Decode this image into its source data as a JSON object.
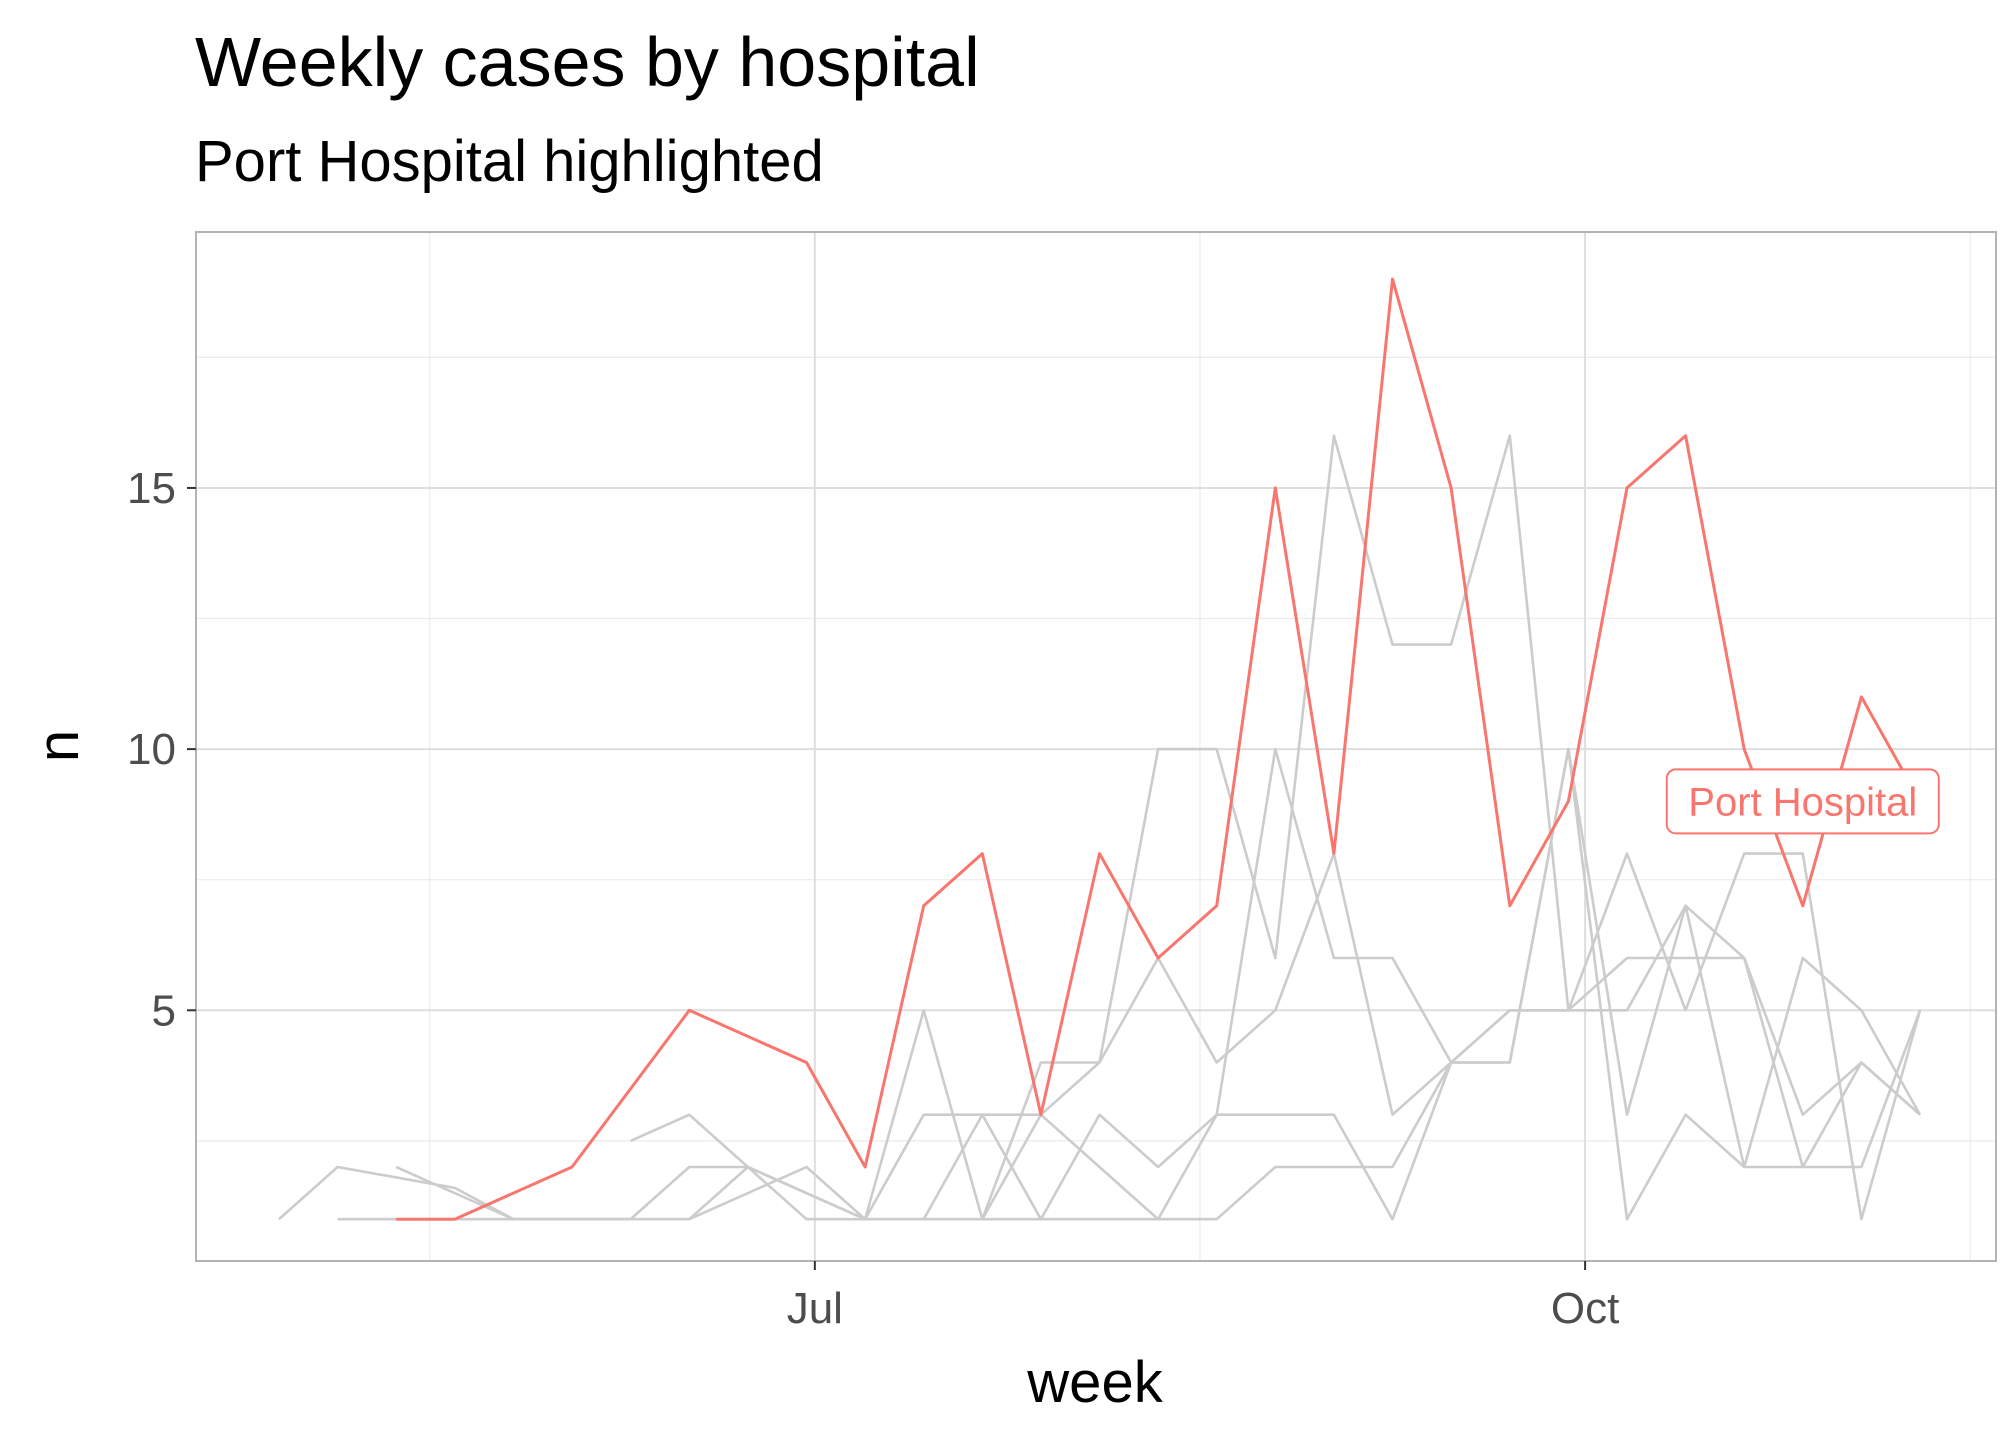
{
  "chart_data": {
    "type": "line",
    "title": "Weekly cases by hospital",
    "subtitle": "Port Hospital highlighted",
    "xlabel": "week",
    "ylabel": "n",
    "x_ticks": [
      "Jul",
      "Oct"
    ],
    "y_ticks": [
      5,
      10,
      15
    ],
    "ylim": [
      0.2,
      19.9
    ],
    "grid": true,
    "highlight_color": "#f8766d",
    "background_color": "#cccccc",
    "series": [
      {
        "name": "Port Hospital",
        "highlighted": true,
        "points": [
          [
            "2014-05-12",
            1
          ],
          [
            "2014-05-19",
            1
          ],
          [
            "2014-06-02",
            2
          ],
          [
            "2014-06-16",
            5
          ],
          [
            "2014-06-30",
            4
          ],
          [
            "2014-07-07",
            2
          ],
          [
            "2014-07-14",
            7
          ],
          [
            "2014-07-21",
            8
          ],
          [
            "2014-07-28",
            3
          ],
          [
            "2014-08-04",
            8
          ],
          [
            "2014-08-11",
            6
          ],
          [
            "2014-08-18",
            7
          ],
          [
            "2014-08-25",
            15
          ],
          [
            "2014-09-01",
            8
          ],
          [
            "2014-09-08",
            19
          ],
          [
            "2014-09-15",
            15
          ],
          [
            "2014-09-22",
            7
          ],
          [
            "2014-09-29",
            9
          ],
          [
            "2014-10-06",
            15
          ],
          [
            "2014-10-13",
            16
          ],
          [
            "2014-10-20",
            10
          ],
          [
            "2014-10-27",
            7
          ],
          [
            "2014-11-03",
            11
          ],
          [
            "2014-11-10",
            9
          ]
        ]
      },
      {
        "points": [
          [
            "2014-04-28",
            1
          ],
          [
            "2014-05-05",
            2
          ],
          [
            "2014-05-19",
            1.6
          ],
          [
            "2014-05-26",
            1
          ],
          [
            "2014-06-02",
            1
          ],
          [
            "2014-06-09",
            1
          ],
          [
            "2014-06-16",
            1
          ],
          [
            "2014-06-23",
            2
          ],
          [
            "2014-07-07",
            1
          ],
          [
            "2014-07-14",
            3
          ],
          [
            "2014-07-21",
            3
          ],
          [
            "2014-07-28",
            3
          ],
          [
            "2014-08-04",
            2
          ],
          [
            "2014-08-11",
            1
          ],
          [
            "2014-08-18",
            1
          ],
          [
            "2014-08-25",
            2
          ],
          [
            "2014-09-01",
            2
          ],
          [
            "2014-09-08",
            2
          ],
          [
            "2014-09-15",
            4
          ],
          [
            "2014-09-22",
            5
          ],
          [
            "2014-09-29",
            5
          ],
          [
            "2014-10-06",
            6
          ],
          [
            "2014-10-13",
            6
          ],
          [
            "2014-10-20",
            6
          ],
          [
            "2014-10-27",
            2
          ],
          [
            "2014-11-03",
            4
          ],
          [
            "2014-11-10",
            3
          ]
        ]
      },
      {
        "points": [
          [
            "2014-05-05",
            1
          ],
          [
            "2014-05-19",
            1
          ],
          [
            "2014-06-02",
            1
          ],
          [
            "2014-06-09",
            1
          ],
          [
            "2014-06-16",
            2
          ],
          [
            "2014-06-23",
            2
          ],
          [
            "2014-07-07",
            1
          ],
          [
            "2014-07-14",
            1
          ],
          [
            "2014-07-21",
            1
          ],
          [
            "2014-07-28",
            1
          ],
          [
            "2014-08-04",
            1
          ],
          [
            "2014-08-11",
            1
          ],
          [
            "2014-08-18",
            3
          ],
          [
            "2014-08-25",
            3
          ],
          [
            "2014-09-01",
            3
          ],
          [
            "2014-09-08",
            1
          ],
          [
            "2014-09-15",
            4
          ],
          [
            "2014-09-22",
            4
          ],
          [
            "2014-09-29",
            10
          ],
          [
            "2014-10-06",
            1
          ],
          [
            "2014-10-13",
            3
          ],
          [
            "2014-10-20",
            2
          ],
          [
            "2014-10-27",
            2
          ],
          [
            "2014-11-03",
            2
          ],
          [
            "2014-11-10",
            5
          ]
        ]
      },
      {
        "points": [
          [
            "2014-05-12",
            2
          ],
          [
            "2014-05-26",
            1
          ],
          [
            "2014-06-02",
            1
          ],
          [
            "2014-06-09",
            1
          ],
          [
            "2014-06-16",
            1
          ],
          [
            "2014-06-30",
            2
          ],
          [
            "2014-07-07",
            1
          ],
          [
            "2014-07-14",
            5
          ],
          [
            "2014-07-21",
            1
          ],
          [
            "2014-07-28",
            4
          ],
          [
            "2014-08-04",
            4
          ],
          [
            "2014-08-11",
            10
          ],
          [
            "2014-08-18",
            10
          ],
          [
            "2014-08-25",
            6
          ],
          [
            "2014-09-01",
            16
          ],
          [
            "2014-09-08",
            12
          ],
          [
            "2014-09-15",
            12
          ],
          [
            "2014-09-22",
            16
          ],
          [
            "2014-09-29",
            5
          ],
          [
            "2014-10-06",
            8
          ],
          [
            "2014-10-13",
            5
          ],
          [
            "2014-10-20",
            8
          ],
          [
            "2014-10-27",
            8
          ],
          [
            "2014-11-03",
            1
          ],
          [
            "2014-11-10",
            5
          ]
        ]
      },
      {
        "points": [
          [
            "2014-06-09",
            2.5
          ],
          [
            "2014-06-16",
            3
          ],
          [
            "2014-06-23",
            2
          ],
          [
            "2014-06-30",
            1
          ],
          [
            "2014-07-07",
            1
          ],
          [
            "2014-07-14",
            1
          ],
          [
            "2014-07-21",
            3
          ],
          [
            "2014-07-28",
            1
          ],
          [
            "2014-08-04",
            3
          ],
          [
            "2014-08-11",
            2
          ],
          [
            "2014-08-18",
            3
          ],
          [
            "2014-08-25",
            10
          ],
          [
            "2014-09-01",
            6
          ],
          [
            "2014-09-08",
            6
          ],
          [
            "2014-09-15",
            4
          ],
          [
            "2014-09-22",
            4
          ],
          [
            "2014-09-29",
            10
          ],
          [
            "2014-10-06",
            3
          ],
          [
            "2014-10-13",
            7
          ],
          [
            "2014-10-20",
            2
          ],
          [
            "2014-10-27",
            6
          ],
          [
            "2014-11-03",
            5
          ],
          [
            "2014-11-10",
            3
          ]
        ]
      },
      {
        "points": [
          [
            "2014-07-21",
            1
          ],
          [
            "2014-07-28",
            3
          ],
          [
            "2014-08-04",
            4
          ],
          [
            "2014-08-11",
            6
          ],
          [
            "2014-08-18",
            4
          ],
          [
            "2014-08-25",
            5
          ],
          [
            "2014-09-01",
            8
          ],
          [
            "2014-09-08",
            3
          ],
          [
            "2014-09-15",
            4
          ],
          [
            "2014-09-22",
            5
          ],
          [
            "2014-09-29",
            5
          ],
          [
            "2014-10-06",
            5
          ],
          [
            "2014-10-13",
            7
          ],
          [
            "2014-10-20",
            6
          ],
          [
            "2014-10-27",
            3
          ],
          [
            "2014-11-03",
            4
          ],
          [
            "2014-11-10",
            3
          ]
        ]
      }
    ],
    "annotation": {
      "text": "Port Hospital",
      "x": "2014-10-27",
      "y": 9
    }
  }
}
